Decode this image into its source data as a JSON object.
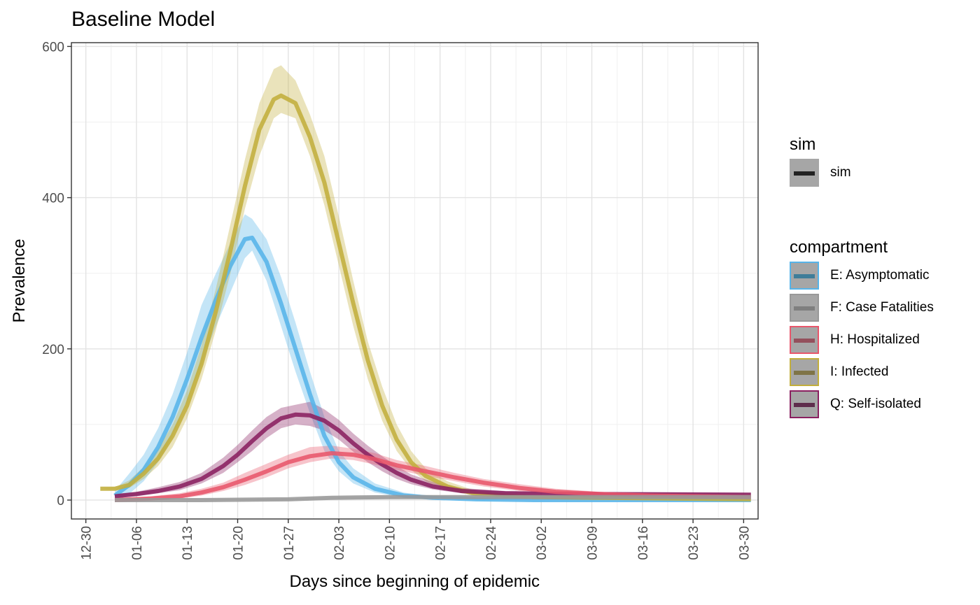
{
  "chart_data": {
    "type": "line",
    "title": "Baseline Model",
    "xlabel": "Days since beginning of epidemic",
    "ylabel": "Prevalence",
    "ylim": [
      -25,
      605
    ],
    "y_ticks": [
      0,
      200,
      400,
      600
    ],
    "x_range_dates": [
      "2019-12-28",
      "2020-04-01"
    ],
    "x_tick_labels": [
      "12-30",
      "01-06",
      "01-13",
      "01-20",
      "01-27",
      "02-03",
      "02-10",
      "02-17",
      "02-24",
      "03-02",
      "03-09",
      "03-16",
      "03-23",
      "03-30"
    ],
    "x_tick_dates": [
      "2019-12-30",
      "2020-01-06",
      "2020-01-13",
      "2020-01-20",
      "2020-01-27",
      "2020-02-03",
      "2020-02-10",
      "2020-02-17",
      "2020-02-24",
      "2020-03-02",
      "2020-03-09",
      "2020-03-16",
      "2020-03-23",
      "2020-03-30"
    ],
    "grid": true,
    "legend_position": "right",
    "legends": [
      {
        "title": "sim",
        "items": [
          {
            "label": "sim",
            "color": "#222222"
          }
        ]
      },
      {
        "title": "compartment",
        "items": [
          {
            "label": "E: Asymptomatic",
            "color": "#56B4E9"
          },
          {
            "label": "F: Case Fatalities",
            "color": "#999999"
          },
          {
            "label": "H: Hospitalized",
            "color": "#E8566B"
          },
          {
            "label": "I: Infected",
            "color": "#C2AE3C"
          },
          {
            "label": "Q: Self-isolated",
            "color": "#8A2060"
          }
        ]
      }
    ],
    "series": [
      {
        "name": "E: Asymptomatic",
        "color": "#56B4E9",
        "band_opacity": 0.35,
        "points": [
          [
            "2020-01-03",
            6,
            0,
            12
          ],
          [
            "2020-01-05",
            20,
            8,
            35
          ],
          [
            "2020-01-07",
            40,
            25,
            60
          ],
          [
            "2020-01-09",
            70,
            50,
            95
          ],
          [
            "2020-01-11",
            110,
            85,
            140
          ],
          [
            "2020-01-13",
            160,
            130,
            195
          ],
          [
            "2020-01-15",
            215,
            180,
            258
          ],
          [
            "2020-01-17",
            265,
            230,
            300
          ],
          [
            "2020-01-19",
            310,
            275,
            340
          ],
          [
            "2020-01-21",
            345,
            320,
            378
          ],
          [
            "2020-01-22",
            347,
            330,
            372
          ],
          [
            "2020-01-24",
            315,
            290,
            345
          ],
          [
            "2020-01-26",
            260,
            230,
            295
          ],
          [
            "2020-01-28",
            200,
            170,
            235
          ],
          [
            "2020-01-30",
            140,
            115,
            170
          ],
          [
            "2020-02-01",
            85,
            65,
            110
          ],
          [
            "2020-02-03",
            50,
            38,
            65
          ],
          [
            "2020-02-05",
            30,
            22,
            42
          ],
          [
            "2020-02-08",
            15,
            10,
            22
          ],
          [
            "2020-02-12",
            6,
            3,
            10
          ],
          [
            "2020-02-16",
            3,
            1,
            5
          ],
          [
            "2020-02-22",
            1,
            0,
            2
          ],
          [
            "2020-03-01",
            0,
            0,
            1
          ],
          [
            "2020-03-31",
            0,
            0,
            0
          ]
        ]
      },
      {
        "name": "I: Infected",
        "color": "#C2AE3C",
        "band_opacity": 0.35,
        "points": [
          [
            "2020-01-01",
            15,
            15,
            15
          ],
          [
            "2020-01-03",
            15,
            14,
            17
          ],
          [
            "2020-01-05",
            20,
            16,
            26
          ],
          [
            "2020-01-07",
            35,
            28,
            44
          ],
          [
            "2020-01-09",
            55,
            45,
            68
          ],
          [
            "2020-01-11",
            85,
            70,
            100
          ],
          [
            "2020-01-13",
            125,
            108,
            145
          ],
          [
            "2020-01-15",
            180,
            160,
            205
          ],
          [
            "2020-01-17",
            250,
            225,
            280
          ],
          [
            "2020-01-19",
            330,
            300,
            365
          ],
          [
            "2020-01-21",
            415,
            385,
            450
          ],
          [
            "2020-01-23",
            490,
            455,
            525
          ],
          [
            "2020-01-25",
            530,
            505,
            570
          ],
          [
            "2020-01-26",
            535,
            512,
            575
          ],
          [
            "2020-01-28",
            525,
            505,
            555
          ],
          [
            "2020-01-30",
            480,
            455,
            510
          ],
          [
            "2020-02-01",
            420,
            390,
            455
          ],
          [
            "2020-02-03",
            340,
            310,
            375
          ],
          [
            "2020-02-05",
            260,
            230,
            290
          ],
          [
            "2020-02-07",
            185,
            160,
            210
          ],
          [
            "2020-02-09",
            125,
            105,
            150
          ],
          [
            "2020-02-11",
            80,
            65,
            100
          ],
          [
            "2020-02-13",
            50,
            40,
            65
          ],
          [
            "2020-02-15",
            32,
            25,
            42
          ],
          [
            "2020-02-18",
            18,
            13,
            25
          ],
          [
            "2020-02-22",
            8,
            5,
            12
          ],
          [
            "2020-03-01",
            4,
            2,
            6
          ],
          [
            "2020-03-31",
            1,
            0,
            2
          ]
        ]
      },
      {
        "name": "Q: Self-isolated",
        "color": "#8A2060",
        "band_opacity": 0.35,
        "points": [
          [
            "2020-01-03",
            5,
            3,
            8
          ],
          [
            "2020-01-06",
            8,
            5,
            11
          ],
          [
            "2020-01-09",
            12,
            9,
            17
          ],
          [
            "2020-01-12",
            18,
            13,
            24
          ],
          [
            "2020-01-15",
            28,
            22,
            36
          ],
          [
            "2020-01-18",
            45,
            36,
            56
          ],
          [
            "2020-01-20",
            60,
            50,
            73
          ],
          [
            "2020-01-22",
            78,
            65,
            92
          ],
          [
            "2020-01-24",
            95,
            82,
            110
          ],
          [
            "2020-01-26",
            108,
            95,
            122
          ],
          [
            "2020-01-28",
            113,
            100,
            126
          ],
          [
            "2020-01-30",
            112,
            98,
            130
          ],
          [
            "2020-02-01",
            105,
            92,
            120
          ],
          [
            "2020-02-03",
            92,
            80,
            106
          ],
          [
            "2020-02-05",
            75,
            64,
            88
          ],
          [
            "2020-02-07",
            60,
            50,
            72
          ],
          [
            "2020-02-09",
            47,
            38,
            58
          ],
          [
            "2020-02-11",
            36,
            28,
            45
          ],
          [
            "2020-02-13",
            27,
            21,
            34
          ],
          [
            "2020-02-16",
            18,
            14,
            24
          ],
          [
            "2020-02-20",
            12,
            9,
            16
          ],
          [
            "2020-02-26",
            9,
            6,
            12
          ],
          [
            "2020-03-05",
            8,
            5,
            11
          ],
          [
            "2020-03-31",
            7,
            4,
            10
          ]
        ]
      },
      {
        "name": "H: Hospitalized",
        "color": "#E8566B",
        "band_opacity": 0.35,
        "points": [
          [
            "2020-01-03",
            0,
            0,
            2
          ],
          [
            "2020-01-08",
            2,
            0,
            5
          ],
          [
            "2020-01-12",
            5,
            2,
            9
          ],
          [
            "2020-01-15",
            10,
            6,
            15
          ],
          [
            "2020-01-18",
            17,
            12,
            23
          ],
          [
            "2020-01-21",
            27,
            20,
            36
          ],
          [
            "2020-01-24",
            38,
            30,
            48
          ],
          [
            "2020-01-27",
            50,
            42,
            60
          ],
          [
            "2020-01-30",
            58,
            50,
            70
          ],
          [
            "2020-02-02",
            62,
            55,
            72
          ],
          [
            "2020-02-05",
            60,
            53,
            68
          ],
          [
            "2020-02-08",
            54,
            47,
            62
          ],
          [
            "2020-02-11",
            46,
            40,
            53
          ],
          [
            "2020-02-15",
            38,
            32,
            45
          ],
          [
            "2020-02-19",
            30,
            25,
            36
          ],
          [
            "2020-02-23",
            23,
            18,
            28
          ],
          [
            "2020-02-28",
            16,
            12,
            21
          ],
          [
            "2020-03-04",
            11,
            8,
            15
          ],
          [
            "2020-03-10",
            8,
            5,
            11
          ],
          [
            "2020-03-17",
            6,
            4,
            9
          ],
          [
            "2020-03-31",
            4,
            2,
            7
          ]
        ]
      },
      {
        "name": "F: Case Fatalities",
        "color": "#999999",
        "band_opacity": 0.3,
        "points": [
          [
            "2020-01-03",
            0,
            0,
            0
          ],
          [
            "2020-01-15",
            0,
            0,
            1
          ],
          [
            "2020-01-27",
            1,
            0,
            2
          ],
          [
            "2020-02-02",
            3,
            1,
            4
          ],
          [
            "2020-02-10",
            4,
            2,
            5
          ],
          [
            "2020-02-20",
            4,
            3,
            6
          ],
          [
            "2020-03-01",
            4,
            3,
            6
          ],
          [
            "2020-03-31",
            4,
            3,
            6
          ]
        ]
      }
    ]
  }
}
